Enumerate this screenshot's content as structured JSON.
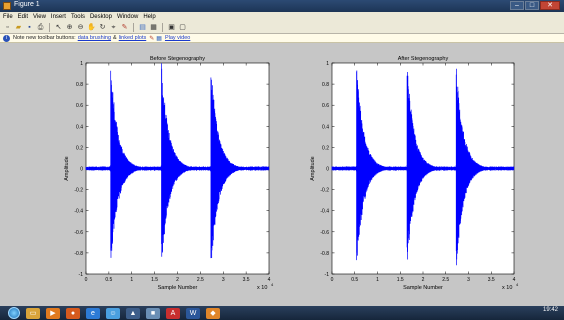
{
  "window": {
    "title": "Figure 1"
  },
  "menu": [
    "File",
    "Edit",
    "View",
    "Insert",
    "Tools",
    "Desktop",
    "Window",
    "Help"
  ],
  "toolbar_icons": [
    "new-icon",
    "open-icon",
    "save-icon",
    "print-icon",
    "sep",
    "pointer-icon",
    "zoom-in-icon",
    "zoom-out-icon",
    "pan-icon",
    "rotate-icon",
    "datacursor-icon",
    "brush-icon",
    "sep",
    "colorbar-icon",
    "legend-icon",
    "sep",
    "hide-plottools-icon",
    "show-plottools-icon"
  ],
  "note": {
    "text": "Note new toolbar buttons:",
    "link1": "data brushing",
    "amp": "&",
    "link2": "linked plots",
    "link3": "Play video"
  },
  "colors": {
    "signal": "#0000ff",
    "axes_bg": "#ffffff",
    "figure_bg": "#c6c6c6"
  },
  "chart_data": [
    {
      "type": "line",
      "title": "Before Stegenography",
      "xlabel": "Sample Number",
      "ylabel": "Amplitude",
      "xlim": [
        0,
        40000
      ],
      "ylim": [
        -1,
        1
      ],
      "x_ticks": [
        0,
        0.5,
        1,
        1.5,
        2,
        2.5,
        3,
        3.5,
        4
      ],
      "y_ticks": [
        1,
        0.8,
        0.6,
        0.4,
        0.2,
        0,
        -0.2,
        -0.4,
        -0.6,
        -0.8,
        -1
      ],
      "x_multiplier": "x 10",
      "x_exponent": "4",
      "series": [
        {
          "bursts": [
            {
              "onset": 5400,
              "peak": 1.0,
              "trough": -0.95,
              "decay": 5000
            },
            {
              "onset": 16500,
              "peak": 1.0,
              "trough": -0.95,
              "decay": 5000
            },
            {
              "onset": 27300,
              "peak": 1.0,
              "trough": -0.97,
              "decay": 5000
            }
          ]
        }
      ]
    },
    {
      "type": "line",
      "title": "After Stegenography",
      "xlabel": "Sample Number",
      "ylabel": "Amplitude",
      "xlim": [
        0,
        40000
      ],
      "ylim": [
        -1,
        1
      ],
      "x_ticks": [
        0,
        0.5,
        1,
        1.5,
        2,
        2.5,
        3,
        3.5,
        4
      ],
      "y_ticks": [
        1,
        0.8,
        0.6,
        0.4,
        0.2,
        0,
        -0.2,
        -0.4,
        -0.6,
        -0.8,
        -1
      ],
      "x_multiplier": "x 10",
      "x_exponent": "4",
      "series": [
        {
          "bursts": [
            {
              "onset": 5400,
              "peak": 1.0,
              "trough": -0.95,
              "decay": 5000
            },
            {
              "onset": 16500,
              "peak": 1.0,
              "trough": -0.95,
              "decay": 5000
            },
            {
              "onset": 27300,
              "peak": 1.0,
              "trough": -0.97,
              "decay": 5000
            }
          ]
        }
      ]
    }
  ],
  "taskbar": {
    "clock": "19:42",
    "icons": [
      "explorer-icon",
      "media-icon",
      "firefox-icon",
      "ie-icon",
      "messenger-icon",
      "matlab-icon",
      "paint-icon",
      "pdf-icon",
      "word-icon",
      "matlab-figure-icon"
    ]
  }
}
